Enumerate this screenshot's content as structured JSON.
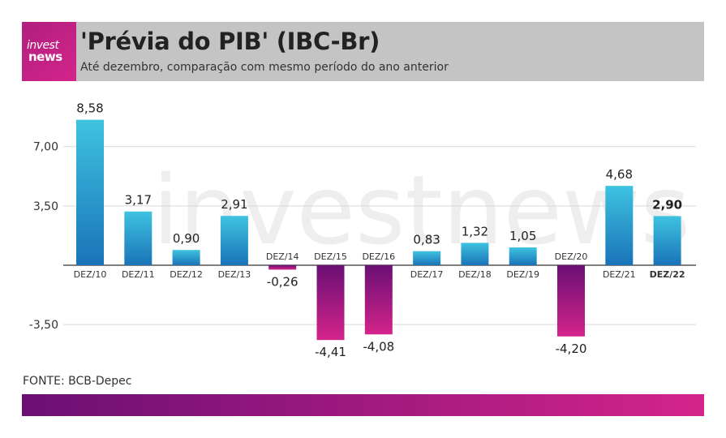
{
  "header": {
    "logo_line1": "invest",
    "logo_line2": "news",
    "title": "'Prévia do PIB' (IBC-Br)",
    "subtitle": "Até dezembro, comparação com mesmo período do ano anterior"
  },
  "source": "FONTE: BCB-Depec",
  "watermark": "investnews",
  "colors": {
    "positive_top": "#3ec3e0",
    "positive_bottom": "#1a73b8",
    "negative_top": "#6a0f74",
    "negative_bottom": "#d4248a",
    "header_bg": "#c4c4c4",
    "brand": "#c81f86"
  },
  "chart_data": {
    "type": "bar",
    "categories": [
      "DEZ/10",
      "DEZ/11",
      "DEZ/12",
      "DEZ/13",
      "DEZ/14",
      "DEZ/15",
      "DEZ/16",
      "DEZ/17",
      "DEZ/18",
      "DEZ/19",
      "DEZ/20",
      "DEZ/21",
      "DEZ/22"
    ],
    "values": [
      8.58,
      3.17,
      0.9,
      2.91,
      -0.26,
      -4.41,
      -4.08,
      0.83,
      1.32,
      1.05,
      -4.2,
      4.68,
      2.9
    ],
    "value_labels": [
      "8,58",
      "3,17",
      "0,90",
      "2,91",
      "-0,26",
      "-4,41",
      "-4,08",
      "0,83",
      "1,32",
      "1,05",
      "-4,20",
      "4,68",
      "2,90"
    ],
    "yticks": [
      7.0,
      3.5,
      -3.5
    ],
    "ytick_labels": [
      "7,00",
      "3,50",
      "-3,50"
    ],
    "ylim": [
      -5.5,
      9.0
    ],
    "highlight": "DEZ/22",
    "grid": true,
    "title": "'Prévia do PIB' (IBC-Br)",
    "xlabel": "",
    "ylabel": ""
  }
}
